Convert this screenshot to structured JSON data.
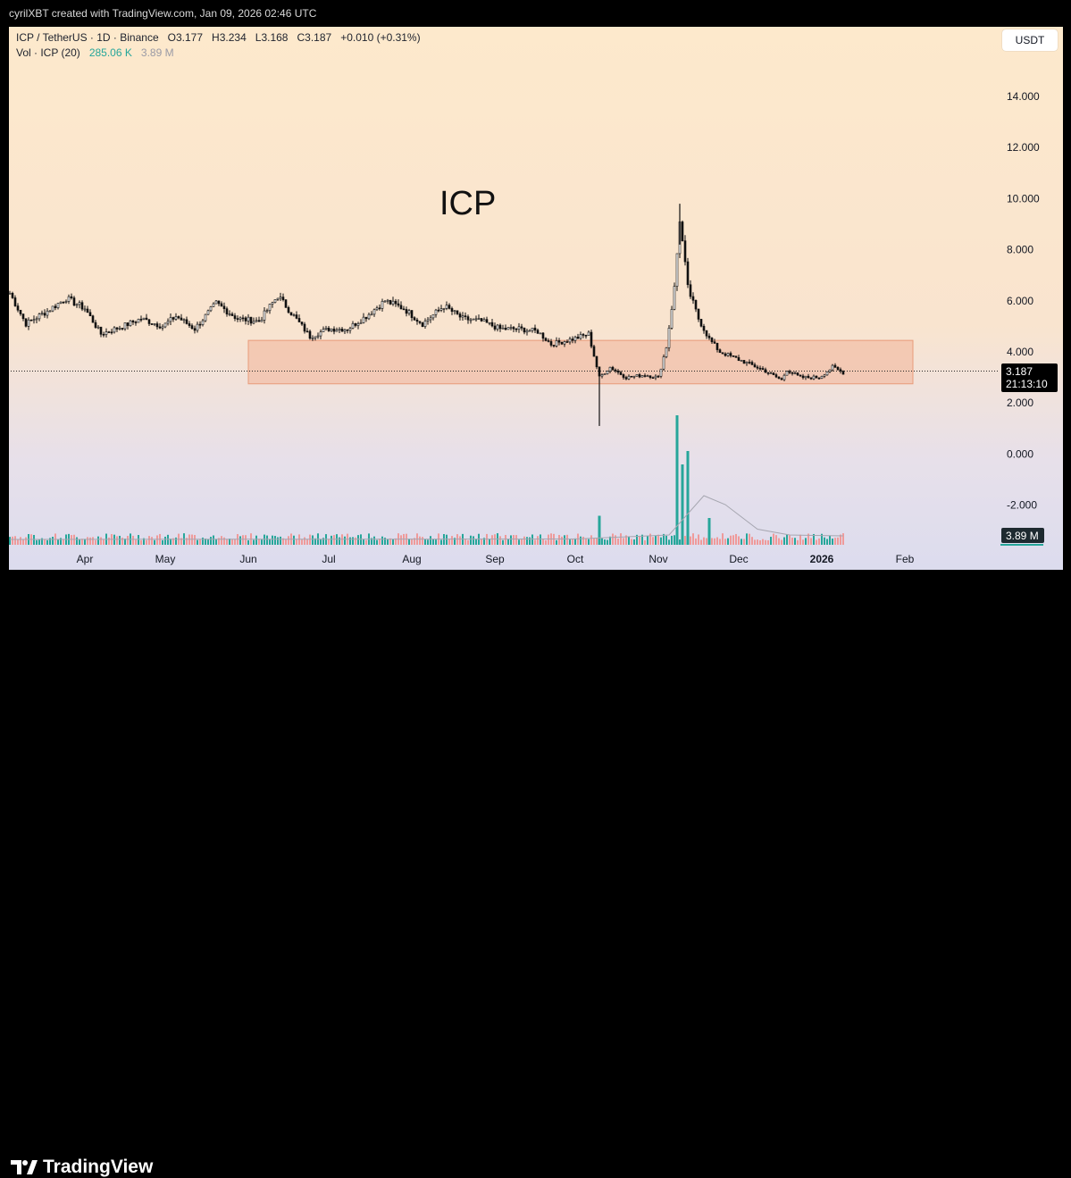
{
  "credit": "cyrilXBT created with TradingView.com, Jan 09, 2026 02:46 UTC",
  "header": {
    "symbol": "ICP / TetherUS · 1D · Binance",
    "open": "O3.177",
    "high": "H3.234",
    "low": "L3.168",
    "close": "C3.187",
    "change": "+0.010 (+0.31%)",
    "vol_label": "Vol · ICP (20)",
    "vol_value": "285.06 K",
    "vol_ma": "3.89 M"
  },
  "currency_button": "USDT",
  "annotation": "ICP",
  "last_price_label": "3.187",
  "countdown_label": "21:13:10",
  "volume_axis_label": "3.89 M",
  "brand": "TradingView",
  "colors": {
    "up": "#089981",
    "down": "#f23645",
    "vol_up": "#26a69a",
    "vol_down": "#ef9a9a",
    "zone": "#f2b79c"
  },
  "chart_data": {
    "type": "candlestick",
    "title": "",
    "y_ticks": [
      "14.000",
      "12.000",
      "10.000",
      "8.000",
      "6.000",
      "4.000",
      "2.000",
      "0.000",
      "-2.000"
    ],
    "x_ticks": [
      "Apr",
      "May",
      "Jun",
      "Jul",
      "Aug",
      "Sep",
      "Oct",
      "Nov",
      "Dec",
      "2026",
      "Feb"
    ],
    "ylim": [
      -2.0,
      14.0
    ],
    "last_price": 3.187,
    "support_zone": {
      "from": "2025-06-01",
      "to": "2026-02-04",
      "low": 2.75,
      "high": 4.45
    },
    "price_path": [
      [
        "2025-03-04",
        6.3
      ],
      [
        "2025-03-10",
        5.1
      ],
      [
        "2025-03-18",
        5.6
      ],
      [
        "2025-03-25",
        6.1
      ],
      [
        "2025-04-01",
        5.7
      ],
      [
        "2025-04-07",
        4.7
      ],
      [
        "2025-04-15",
        5.0
      ],
      [
        "2025-04-22",
        5.3
      ],
      [
        "2025-04-30",
        5.0
      ],
      [
        "2025-05-05",
        5.4
      ],
      [
        "2025-05-12",
        4.9
      ],
      [
        "2025-05-20",
        5.9
      ],
      [
        "2025-05-28",
        5.3
      ],
      [
        "2025-06-05",
        5.2
      ],
      [
        "2025-06-12",
        6.2
      ],
      [
        "2025-06-18",
        5.4
      ],
      [
        "2025-06-24",
        4.6
      ],
      [
        "2025-07-01",
        4.9
      ],
      [
        "2025-07-08",
        4.9
      ],
      [
        "2025-07-15",
        5.4
      ],
      [
        "2025-07-22",
        6.0
      ],
      [
        "2025-07-29",
        5.7
      ],
      [
        "2025-08-05",
        5.1
      ],
      [
        "2025-08-13",
        5.8
      ],
      [
        "2025-08-20",
        5.3
      ],
      [
        "2025-08-27",
        5.2
      ],
      [
        "2025-09-03",
        4.9
      ],
      [
        "2025-09-10",
        4.9
      ],
      [
        "2025-09-17",
        4.8
      ],
      [
        "2025-09-22",
        4.3
      ],
      [
        "2025-09-30",
        4.5
      ],
      [
        "2025-10-06",
        4.7
      ],
      [
        "2025-10-10",
        3.0
      ],
      [
        "2025-10-14",
        3.4
      ],
      [
        "2025-10-20",
        3.0
      ],
      [
        "2025-10-27",
        3.1
      ],
      [
        "2025-11-01",
        3.0
      ],
      [
        "2025-11-04",
        4.2
      ],
      [
        "2025-11-07",
        6.5
      ],
      [
        "2025-11-09",
        9.2
      ],
      [
        "2025-11-12",
        6.5
      ],
      [
        "2025-11-16",
        5.3
      ],
      [
        "2025-11-20",
        4.5
      ],
      [
        "2025-11-24",
        4.0
      ],
      [
        "2025-12-01",
        3.7
      ],
      [
        "2025-12-10",
        3.3
      ],
      [
        "2025-12-17",
        2.9
      ],
      [
        "2025-12-19",
        3.3
      ],
      [
        "2025-12-24",
        3.0
      ],
      [
        "2025-12-31",
        3.0
      ],
      [
        "2026-01-05",
        3.4
      ],
      [
        "2026-01-09",
        3.187
      ]
    ],
    "wicks": [
      {
        "date": "2025-10-10",
        "low": 1.1,
        "high": 3.4
      },
      {
        "date": "2025-11-09",
        "low": 8.2,
        "high": 9.8
      }
    ],
    "volume_axis_label": "3.89 M",
    "volume_peaks": [
      {
        "date": "2025-11-08",
        "value": 29
      },
      {
        "date": "2025-11-12",
        "value": 21
      },
      {
        "date": "2025-11-10",
        "value": 18
      },
      {
        "date": "2025-10-10",
        "value": 6.5
      },
      {
        "date": "2025-11-20",
        "value": 6
      }
    ]
  }
}
